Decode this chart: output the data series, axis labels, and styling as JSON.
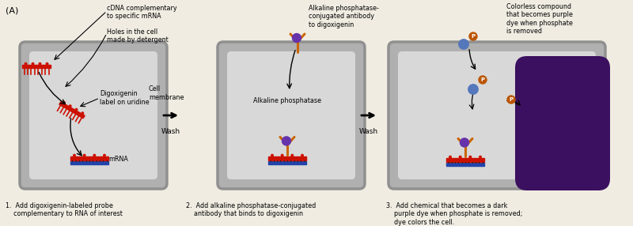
{
  "bg_color": "#f0ece2",
  "cell_outer_color": "#b0b0b0",
  "cell_inner_color": "#d8d8d8",
  "title_label": "(A)",
  "arrow_wash1": "Wash",
  "arrow_wash2": "Wash",
  "caption1": "1.  Add digoxigenin-labeled probe\n    complementary to RNA of interest",
  "caption2": "2.  Add alkaline phosphatase-conjugated\n    antibody that binds to digoxigenin",
  "caption3": "3.  Add chemical that becomes a dark\n    purple dye when phosphate is removed;\n    dye colors the cell.",
  "red_color": "#cc1100",
  "blue_color": "#2244aa",
  "orange_color": "#cc6600",
  "purple_color": "#6633aa",
  "dark_purple": "#3b1060",
  "light_blue_circle": "#5577bb",
  "p_circle_color": "#bb5500"
}
